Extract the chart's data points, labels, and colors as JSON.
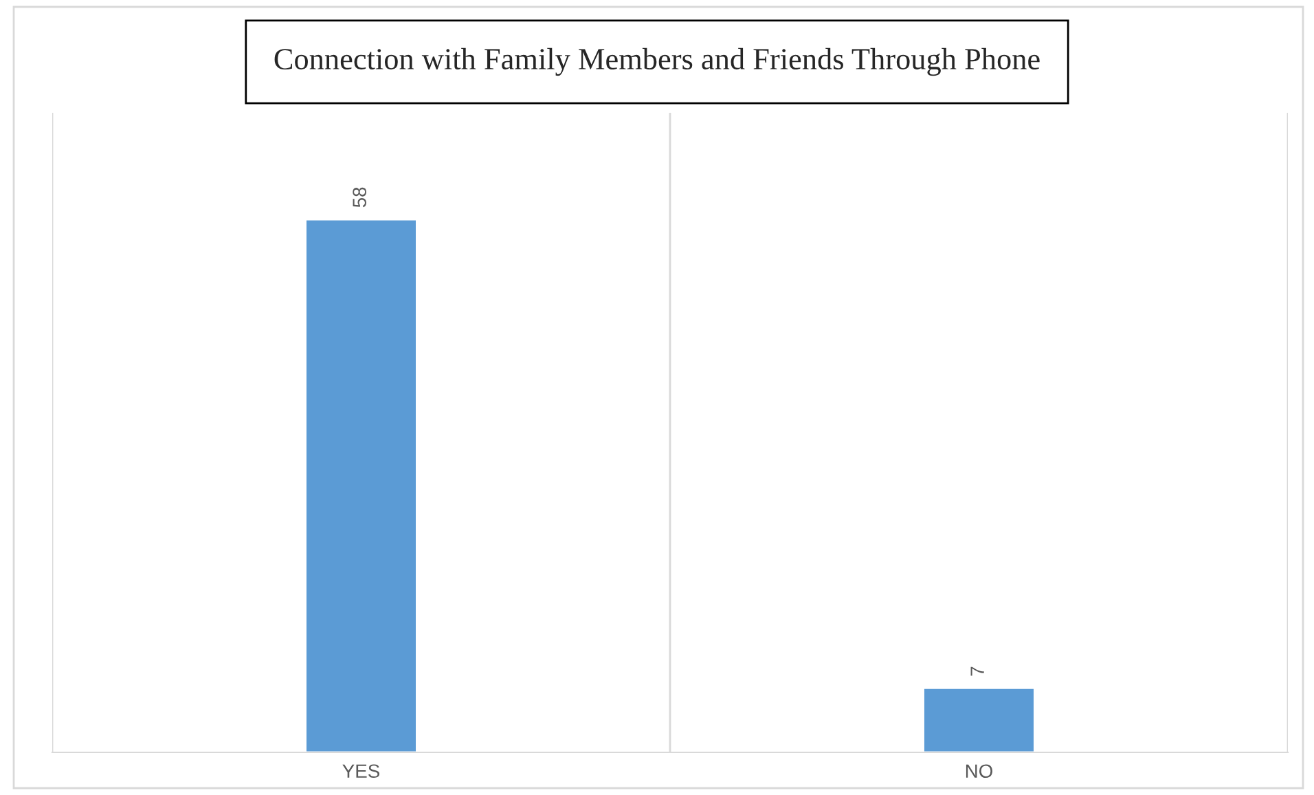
{
  "chart_data": {
    "type": "bar",
    "title": "Connection with Family Members and Friends Through Phone",
    "categories": [
      "YES",
      "NO"
    ],
    "values": [
      58,
      7
    ],
    "color": "#5b9bd5",
    "data_labels": true,
    "grid": "x"
  }
}
